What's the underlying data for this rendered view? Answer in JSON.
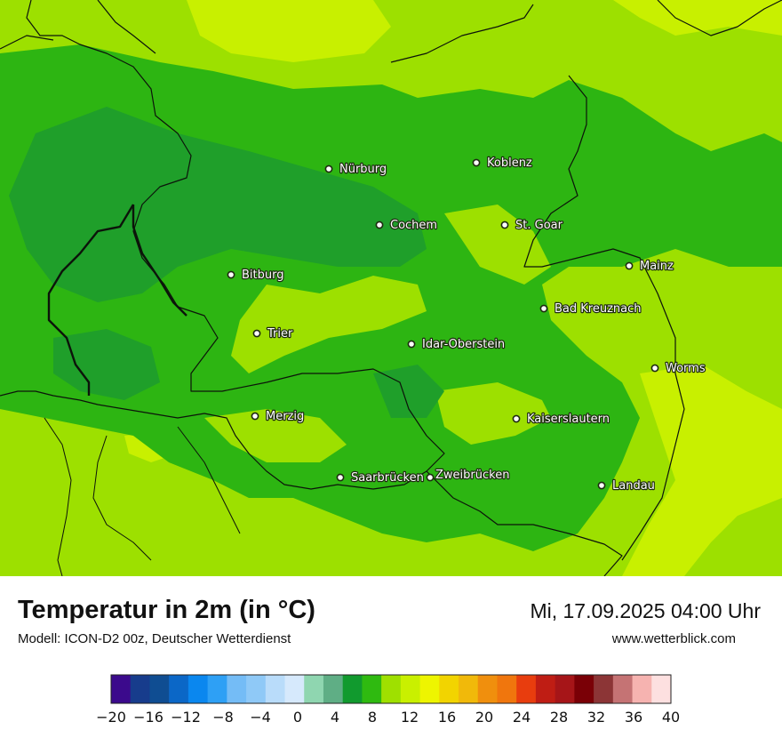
{
  "map": {
    "cities": [
      {
        "name": "Nürburg"
      },
      {
        "name": "Koblenz"
      },
      {
        "name": "Cochem"
      },
      {
        "name": "St. Goar"
      },
      {
        "name": "Mainz"
      },
      {
        "name": "Bitburg"
      },
      {
        "name": "Bad Kreuznach"
      },
      {
        "name": "Trier"
      },
      {
        "name": "Idar-Oberstein"
      },
      {
        "name": "Worms"
      },
      {
        "name": "Merzig"
      },
      {
        "name": "Kaiserslautern"
      },
      {
        "name": "Saarbrücken"
      },
      {
        "name": "Zweibrücken"
      },
      {
        "name": "Landau"
      }
    ]
  },
  "footer": {
    "title": "Temperatur in 2m (in °C)",
    "model": "Modell: ICON-D2 00z, Deutscher Wetterdienst",
    "datetime": "Mi, 17.09.2025 04:00 Uhr",
    "website": "www.wetterblick.com"
  },
  "legend": {
    "ticks": [
      "−20",
      "−16",
      "−12",
      "−8",
      "−4",
      "0",
      "4",
      "8",
      "12",
      "16",
      "20",
      "24",
      "28",
      "32",
      "36",
      "40"
    ],
    "colors": [
      "#3b0a8c",
      "#173c8c",
      "#0f4d92",
      "#0b67c7",
      "#0a87ef",
      "#2ea0f5",
      "#74bcf6",
      "#8fc9f7",
      "#b9dcfa",
      "#d6e9fc",
      "#8fd6b0",
      "#5fae85",
      "#119a2e",
      "#2fba10",
      "#9fe000",
      "#c9f000",
      "#eef500",
      "#f2d400",
      "#f1b90a",
      "#f08f0d",
      "#f0760d",
      "#e83d0e",
      "#bf1d14",
      "#a61518",
      "#7a0006",
      "#8c3536",
      "#c57374",
      "#f6b3b0",
      "#fde0e0"
    ]
  }
}
